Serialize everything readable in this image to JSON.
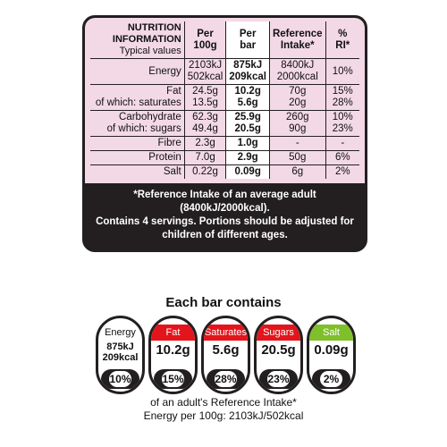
{
  "table": {
    "header": {
      "label": [
        "NUTRITION",
        "INFORMATION",
        "Typical values"
      ],
      "per100": [
        "Per",
        "100g"
      ],
      "perbar": [
        "Per",
        "bar"
      ],
      "ref": [
        "Reference",
        "Intake*"
      ],
      "ri": [
        "%",
        "RI*"
      ]
    },
    "rows": [
      {
        "labels": [
          "Energy"
        ],
        "per100": [
          "2103kJ",
          "502kcal"
        ],
        "perbar": [
          "875kJ",
          "209kcal"
        ],
        "ref": [
          "8400kJ",
          "2000kcal"
        ],
        "ri": [
          "10%"
        ]
      },
      {
        "labels": [
          "Fat",
          "of which: saturates"
        ],
        "per100": [
          "24.5g",
          "13.5g"
        ],
        "perbar": [
          "10.2g",
          "5.6g"
        ],
        "ref": [
          "70g",
          "20g"
        ],
        "ri": [
          "15%",
          "28%"
        ]
      },
      {
        "labels": [
          "Carbohydrate",
          "of which: sugars"
        ],
        "per100": [
          "62.3g",
          "49.4g"
        ],
        "perbar": [
          "25.9g",
          "20.5g"
        ],
        "ref": [
          "260g",
          "90g"
        ],
        "ri": [
          "10%",
          "23%"
        ]
      },
      {
        "labels": [
          "Fibre"
        ],
        "per100": [
          "2.3g"
        ],
        "perbar": [
          "1.0g"
        ],
        "ref": [
          "-"
        ],
        "ri": [
          "-"
        ]
      },
      {
        "labels": [
          "Protein"
        ],
        "per100": [
          "7.0g"
        ],
        "perbar": [
          "2.9g"
        ],
        "ref": [
          "50g"
        ],
        "ri": [
          "6%"
        ]
      },
      {
        "labels": [
          "Salt"
        ],
        "per100": [
          "0.22g"
        ],
        "perbar": [
          "0.09g"
        ],
        "ref": [
          "6g"
        ],
        "ri": [
          "2%"
        ]
      }
    ],
    "footnote": [
      "*Reference Intake of an average adult (8400kJ/2000kcal).",
      "Contains 4 servings. Portions should be adjusted for",
      "children of different ages."
    ]
  },
  "gda": {
    "heading": "Each bar contains",
    "items": [
      {
        "name": "Energy",
        "value": [
          "875kJ",
          "209kcal"
        ],
        "pct": "10%",
        "color": "#ffffff"
      },
      {
        "name": "Fat",
        "value": [
          "10.2g"
        ],
        "pct": "15%",
        "color": "#e3141c"
      },
      {
        "name": "Saturates",
        "value": [
          "5.6g"
        ],
        "pct": "28%",
        "color": "#e3141c"
      },
      {
        "name": "Sugars",
        "value": [
          "20.5g"
        ],
        "pct": "23%",
        "color": "#e3141c"
      },
      {
        "name": "Salt",
        "value": [
          "0.09g"
        ],
        "pct": "2%",
        "color": "#7fbf2a"
      }
    ],
    "footer": [
      "of an adult's Reference Intake*",
      "Energy per 100g: 2103kJ/502kcal"
    ]
  }
}
